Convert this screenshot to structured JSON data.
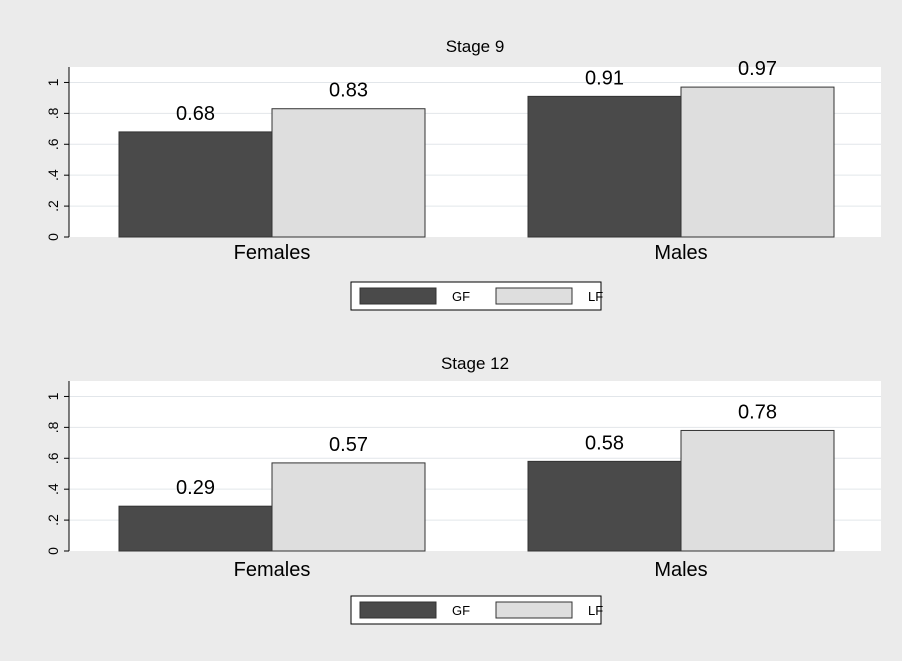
{
  "chart_data": [
    {
      "type": "bar",
      "title": "Stage 9",
      "categories": [
        "Females",
        "Males"
      ],
      "series": [
        {
          "name": "GF",
          "values": [
            0.68,
            0.91
          ],
          "color": "#4a4a4a"
        },
        {
          "name": "LF",
          "values": [
            0.83,
            0.97
          ],
          "color": "#dedede"
        }
      ],
      "data_labels": [
        [
          "0.68",
          "0.83"
        ],
        [
          "0.91",
          "0.97"
        ]
      ],
      "ylim": [
        0,
        1.1
      ],
      "yticks": [
        0,
        0.2,
        0.4,
        0.6,
        0.8,
        1
      ],
      "ytick_labels": [
        "0",
        ".2",
        ".4",
        ".6",
        ".8",
        "1"
      ],
      "grid": true,
      "legend": [
        "GF",
        "LF"
      ]
    },
    {
      "type": "bar",
      "title": "Stage 12",
      "categories": [
        "Females",
        "Males"
      ],
      "series": [
        {
          "name": "GF",
          "values": [
            0.29,
            0.58
          ],
          "color": "#4a4a4a"
        },
        {
          "name": "LF",
          "values": [
            0.57,
            0.78
          ],
          "color": "#dedede"
        }
      ],
      "data_labels": [
        [
          "0.29",
          "0.57"
        ],
        [
          "0.58",
          "0.78"
        ]
      ],
      "ylim": [
        0,
        1.1
      ],
      "yticks": [
        0,
        0.2,
        0.4,
        0.6,
        0.8,
        1
      ],
      "ytick_labels": [
        "0",
        ".2",
        ".4",
        ".6",
        ".8",
        "1"
      ],
      "grid": true,
      "legend": [
        "GF",
        "LF"
      ]
    }
  ]
}
